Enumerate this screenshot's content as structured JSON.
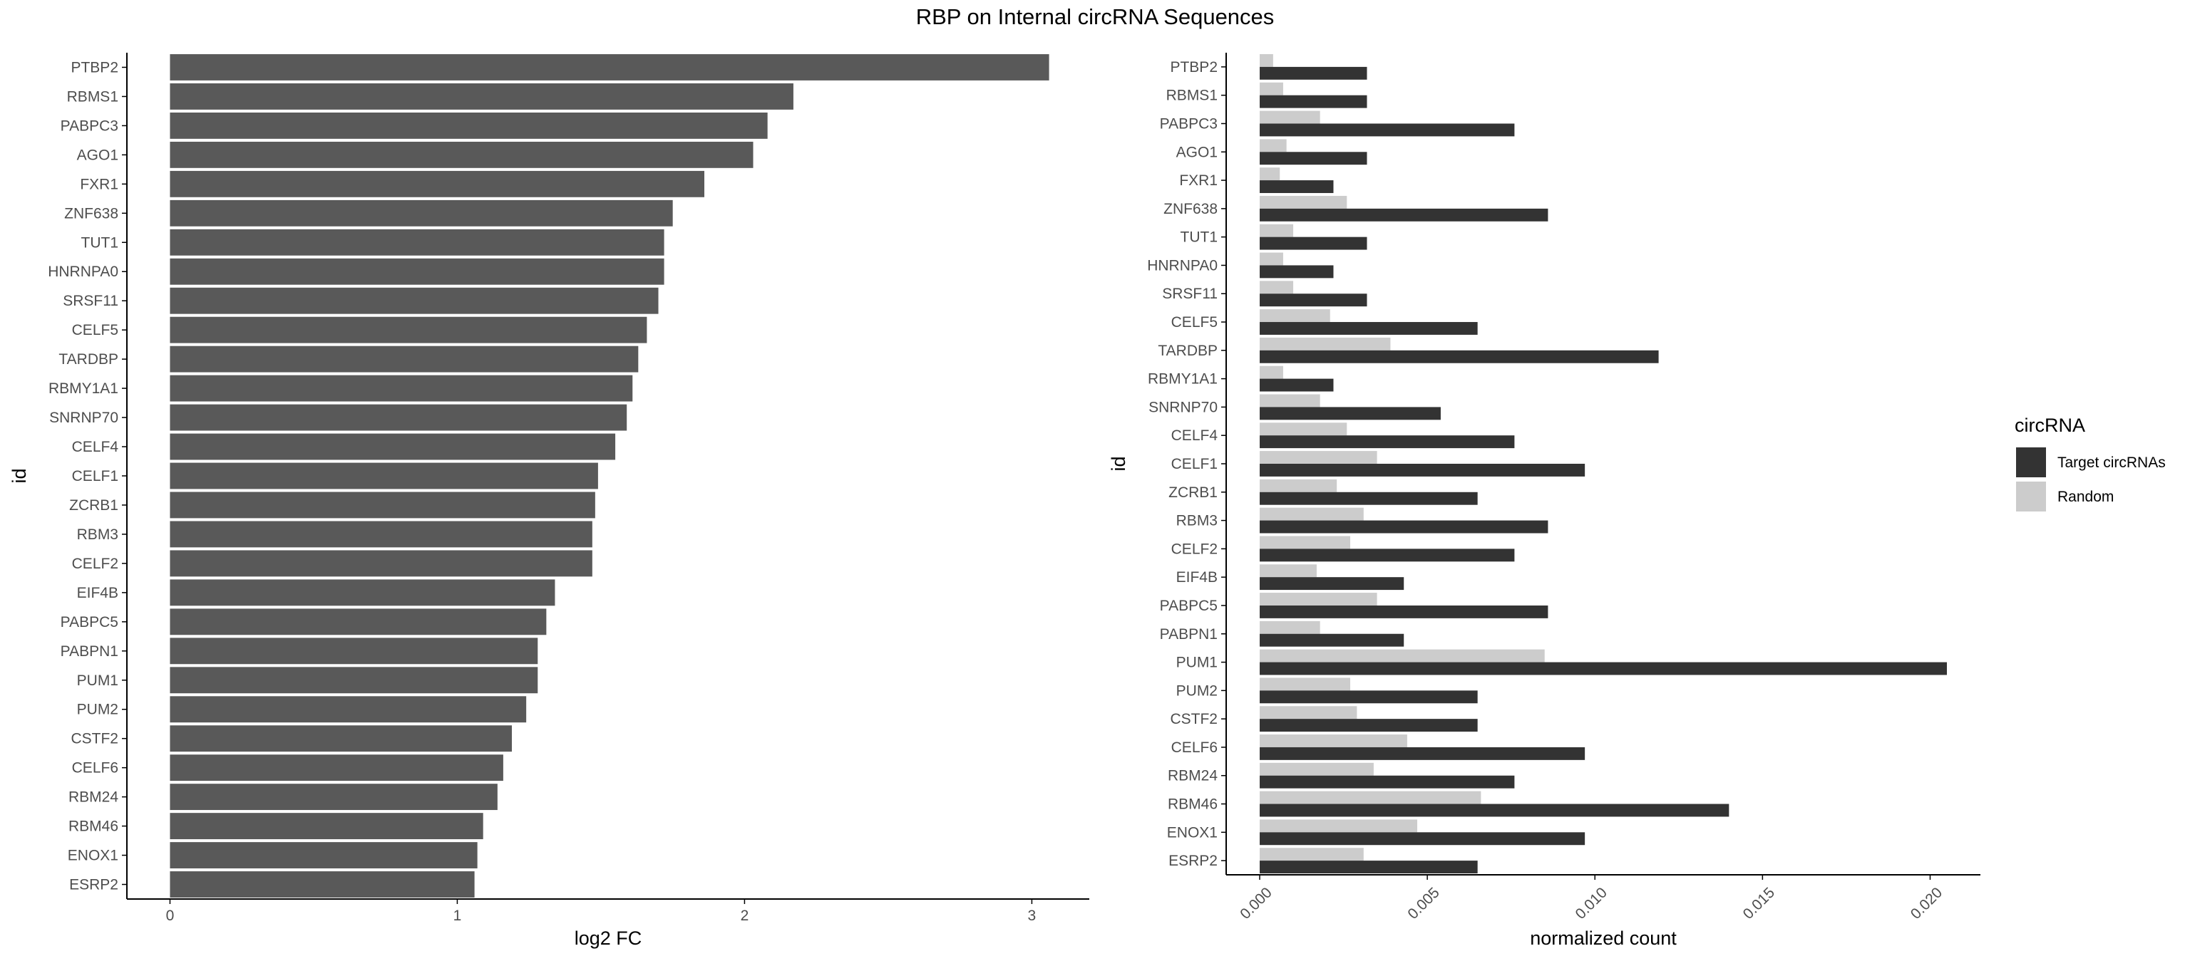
{
  "title": "RBP on Internal circRNA Sequences",
  "colors": {
    "bar": "#595959",
    "target": "#333333",
    "random": "#cccccc",
    "axis": "#000000",
    "tick_text": "#4d4d4d"
  },
  "chart_data": [
    {
      "type": "bar",
      "orientation": "horizontal",
      "xlabel": "log2 FC",
      "ylabel": "id",
      "xlim": [
        -0.15,
        3.2
      ],
      "xticks": [
        "0",
        "1",
        "2",
        "3"
      ],
      "categories": [
        "PTBP2",
        "RBMS1",
        "PABPC3",
        "AGO1",
        "FXR1",
        "ZNF638",
        "TUT1",
        "HNRNPA0",
        "SRSF11",
        "CELF5",
        "TARDBP",
        "RBMY1A1",
        "SNRNP70",
        "CELF4",
        "CELF1",
        "ZCRB1",
        "RBM3",
        "CELF2",
        "EIF4B",
        "PABPC5",
        "PABPN1",
        "PUM1",
        "PUM2",
        "CSTF2",
        "CELF6",
        "RBM24",
        "RBM46",
        "ENOX1",
        "ESRP2"
      ],
      "values": [
        3.06,
        2.17,
        2.08,
        2.03,
        1.86,
        1.75,
        1.72,
        1.72,
        1.7,
        1.66,
        1.63,
        1.61,
        1.59,
        1.55,
        1.49,
        1.48,
        1.47,
        1.47,
        1.34,
        1.31,
        1.28,
        1.28,
        1.24,
        1.19,
        1.16,
        1.14,
        1.09,
        1.07,
        1.06
      ],
      "grid": false
    },
    {
      "type": "bar",
      "orientation": "horizontal",
      "grouped": true,
      "xlabel": "normalized count",
      "ylabel": "id",
      "xlim": [
        -0.001,
        0.0215
      ],
      "xticks": [
        "0.000",
        "0.005",
        "0.010",
        "0.015",
        "0.020"
      ],
      "categories": [
        "PTBP2",
        "RBMS1",
        "PABPC3",
        "AGO1",
        "FXR1",
        "ZNF638",
        "TUT1",
        "HNRNPA0",
        "SRSF11",
        "CELF5",
        "TARDBP",
        "RBMY1A1",
        "SNRNP70",
        "CELF4",
        "CELF1",
        "ZCRB1",
        "RBM3",
        "CELF2",
        "EIF4B",
        "PABPC5",
        "PABPN1",
        "PUM1",
        "PUM2",
        "CSTF2",
        "CELF6",
        "RBM24",
        "RBM46",
        "ENOX1",
        "ESRP2"
      ],
      "series": [
        {
          "name": "Target circRNAs",
          "values": [
            0.0032,
            0.0032,
            0.0076,
            0.0032,
            0.0022,
            0.0086,
            0.0032,
            0.0022,
            0.0032,
            0.0065,
            0.0119,
            0.0022,
            0.0054,
            0.0076,
            0.0097,
            0.0065,
            0.0086,
            0.0076,
            0.0043,
            0.0086,
            0.0043,
            0.0205,
            0.0065,
            0.0065,
            0.0097,
            0.0076,
            0.014,
            0.0097,
            0.0065
          ]
        },
        {
          "name": "Random",
          "values": [
            0.0004,
            0.0007,
            0.0018,
            0.0008,
            0.0006,
            0.0026,
            0.001,
            0.0007,
            0.001,
            0.0021,
            0.0039,
            0.0007,
            0.0018,
            0.0026,
            0.0035,
            0.0023,
            0.0031,
            0.0027,
            0.0017,
            0.0035,
            0.0018,
            0.0085,
            0.0027,
            0.0029,
            0.0044,
            0.0034,
            0.0066,
            0.0047,
            0.0031
          ]
        }
      ],
      "legend": {
        "title": "circRNA",
        "position": "right"
      },
      "grid": false
    }
  ]
}
